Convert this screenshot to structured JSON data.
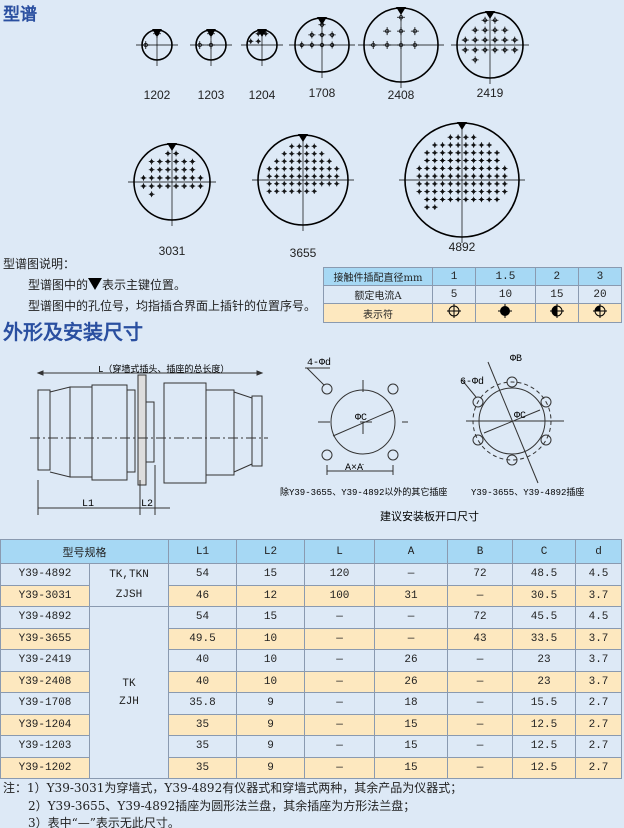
{
  "section1_title": "型谱",
  "layouts": [
    {
      "label": "1202",
      "pins": 2
    },
    {
      "label": "1203",
      "pins": 3
    },
    {
      "label": "1204",
      "pins": 4
    },
    {
      "label": "1708",
      "pins": 8
    },
    {
      "label": "2408",
      "pins": 8
    },
    {
      "label": "2419",
      "pins": 19
    },
    {
      "label": "3031",
      "pins": 31
    },
    {
      "label": "3655",
      "pins": 55
    },
    {
      "label": "4892",
      "pins": 92
    }
  ],
  "legend": {
    "heading": "型谱图说明：",
    "line1_pre": "型谱图中的",
    "line1_post": "表示主键位置。",
    "line2": "型谱图中的孔位号，均指插合界面上插针的位置序号。"
  },
  "contact_table": {
    "rows": [
      {
        "label": "接触件插配直径mm",
        "values": [
          "1",
          "1.5",
          "2",
          "3"
        ]
      },
      {
        "label": "额定电流A",
        "values": [
          "5",
          "10",
          "15",
          "20"
        ]
      },
      {
        "label": "表示符",
        "symbols": [
          "crosshair-circle",
          "filled-circle",
          "half-filled-circle",
          "quarter-filled-circle"
        ]
      }
    ]
  },
  "section2_title": "外形及安装尺寸",
  "drawing": {
    "length_label": "L（穿墙式插头、插座的总长度）",
    "l1": "L1",
    "l2": "L2",
    "square_holes": "4-Φd",
    "square_c": "ΦC",
    "square_a": "A×A",
    "square_caption": "除Y39-3655、Y39-4892以外的其它插座",
    "round_b": "ΦB",
    "round_holes": "6-Φd",
    "round_c": "ΦC",
    "round_caption": "Y39-3655、Y39-4892插座",
    "panel_caption": "建议安装板开口尺寸"
  },
  "dim_table": {
    "headers": [
      "型号规格",
      "L1",
      "L2",
      "L",
      "A",
      "B",
      "C",
      "d"
    ],
    "groups": [
      {
        "series": [
          "TK,TKN",
          "ZJSH"
        ]
      },
      {
        "series": [
          "TK",
          "ZJH"
        ]
      }
    ],
    "rows": [
      [
        "Y39-4892",
        "54",
        "15",
        "120",
        "—",
        "72",
        "48.5",
        "4.5"
      ],
      [
        "Y39-3031",
        "46",
        "12",
        "100",
        "31",
        "—",
        "30.5",
        "3.7"
      ],
      [
        "Y39-4892",
        "54",
        "15",
        "—",
        "—",
        "72",
        "45.5",
        "4.5"
      ],
      [
        "Y39-3655",
        "49.5",
        "10",
        "—",
        "—",
        "43",
        "33.5",
        "3.7"
      ],
      [
        "Y39-2419",
        "40",
        "10",
        "—",
        "26",
        "—",
        "23",
        "3.7"
      ],
      [
        "Y39-2408",
        "40",
        "10",
        "—",
        "26",
        "—",
        "23",
        "3.7"
      ],
      [
        "Y39-1708",
        "35.8",
        "9",
        "—",
        "18",
        "—",
        "15.5",
        "2.7"
      ],
      [
        "Y39-1204",
        "35",
        "9",
        "—",
        "15",
        "—",
        "12.5",
        "2.7"
      ],
      [
        "Y39-1203",
        "35",
        "9",
        "—",
        "15",
        "—",
        "12.5",
        "2.7"
      ],
      [
        "Y39-1202",
        "35",
        "9",
        "—",
        "15",
        "—",
        "12.5",
        "2.7"
      ]
    ]
  },
  "notes": [
    "注：1）Y39-3031为穿墙式，Y39-4892有仪器式和穿墙式两种，其余产品为仪器式；",
    "2）Y39-3655、Y39-4892插座为圆形法兰盘，其余插座为方形法兰盘；",
    "3）表中“—”表示无此尺寸。"
  ],
  "colors": {
    "title": "#2a4fa0",
    "header": "#a6d8f4",
    "row_blue": "#dde9f6",
    "row_yellow": "#fde8bf"
  }
}
